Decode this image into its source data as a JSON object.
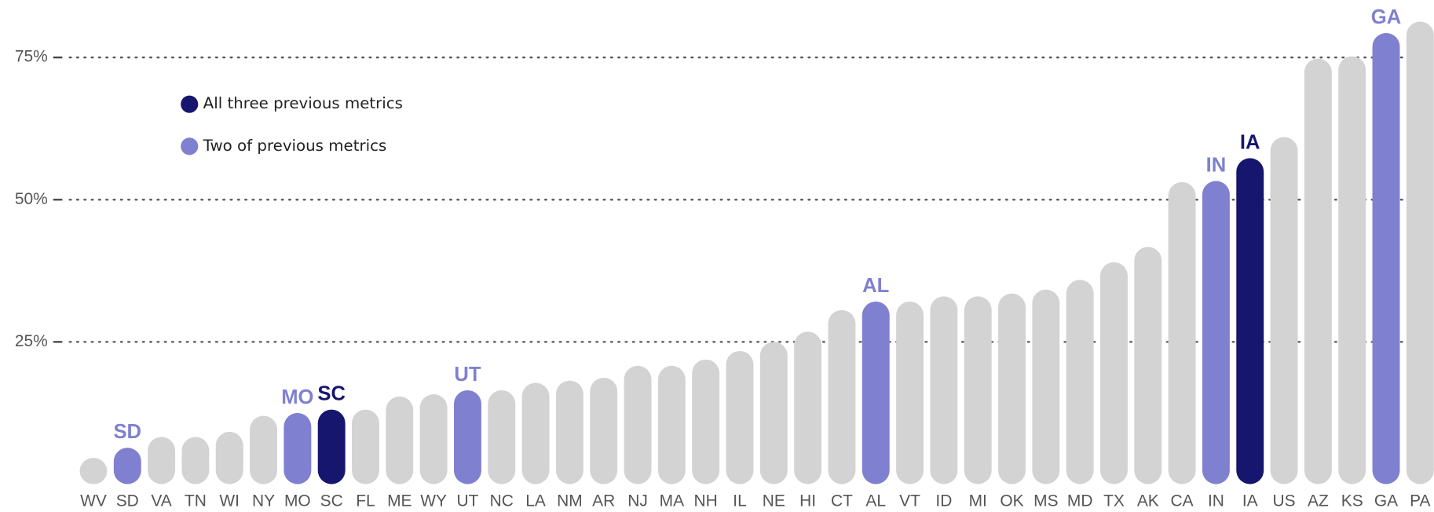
{
  "chart_data": {
    "type": "bar",
    "categories": [
      "WV",
      "SD",
      "VA",
      "TN",
      "WI",
      "NY",
      "MO",
      "SC",
      "FL",
      "ME",
      "WY",
      "UT",
      "NC",
      "LA",
      "NM",
      "AR",
      "NJ",
      "MA",
      "NH",
      "IL",
      "NE",
      "HI",
      "CT",
      "AL",
      "VT",
      "ID",
      "MI",
      "OK",
      "MS",
      "MD",
      "TX",
      "AK",
      "CA",
      "IN",
      "IA",
      "US",
      "AZ",
      "KS",
      "GA",
      "PA"
    ],
    "values": [
      4.6,
      6.4,
      8.3,
      8.3,
      9.2,
      12.0,
      12.5,
      13.1,
      13.1,
      15.4,
      15.8,
      16.5,
      16.5,
      17.8,
      18.2,
      18.7,
      20.8,
      20.8,
      21.9,
      23.4,
      25.0,
      26.8,
      30.6,
      32.1,
      32.1,
      33.0,
      33.0,
      33.5,
      34.2,
      35.9,
      39.0,
      41.7,
      53.1,
      53.3,
      57.3,
      61.0,
      74.8,
      75.2,
      79.3,
      81.3
    ],
    "color": "#d3d3d3",
    "bar_colors": [
      "#d3d3d3",
      "#8080d0",
      "#d3d3d3",
      "#d3d3d3",
      "#d3d3d3",
      "#d3d3d3",
      "#8080d0",
      "#16166e",
      "#d3d3d3",
      "#d3d3d3",
      "#d3d3d3",
      "#8080d0",
      "#d3d3d3",
      "#d3d3d3",
      "#d3d3d3",
      "#d3d3d3",
      "#d3d3d3",
      "#d3d3d3",
      "#d3d3d3",
      "#d3d3d3",
      "#d3d3d3",
      "#d3d3d3",
      "#d3d3d3",
      "#8080d0",
      "#d3d3d3",
      "#d3d3d3",
      "#d3d3d3",
      "#d3d3d3",
      "#d3d3d3",
      "#d3d3d3",
      "#d3d3d3",
      "#d3d3d3",
      "#d3d3d3",
      "#8080d0",
      "#16166e",
      "#d3d3d3",
      "#d3d3d3",
      "#d3d3d3",
      "#8080d0",
      "#d3d3d3"
    ],
    "legend": [
      {
        "label": "All three previous metrics",
        "color": "#16166e"
      },
      {
        "label": "Two of previous metrics",
        "color": "#8080d0"
      }
    ],
    "ylim": [
      0,
      85.1
    ],
    "yticks": [
      {
        "value": 25,
        "label": "25%"
      },
      {
        "value": 50,
        "label": "50%"
      },
      {
        "value": 75,
        "label": "75%"
      }
    ],
    "grid": true
  }
}
